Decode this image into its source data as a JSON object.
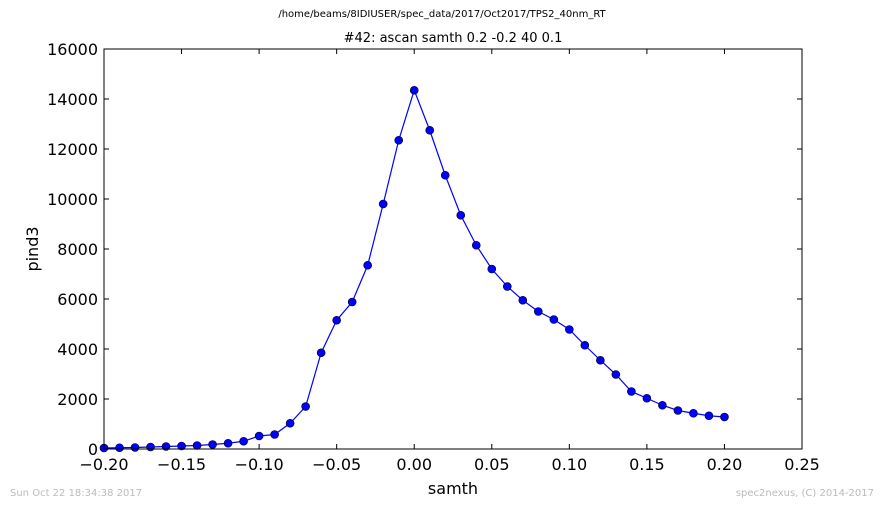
{
  "header": {
    "filepath": "/home/beams/8IDIUSER/spec_data/2017/Oct2017/TPS2_40nm_RT",
    "subtitle": "#42: ascan  samth 0.2 -0.2  40 0.1"
  },
  "footer": {
    "timestamp": "Sun Oct 22 18:34:38 2017",
    "credit": "spec2nexus, (C) 2014-2017"
  },
  "chart_data": {
    "type": "line",
    "title": "#42: ascan  samth 0.2 -0.2  40 0.1",
    "xlabel": "samth",
    "ylabel": "pind3",
    "xlim": [
      -0.2,
      0.25
    ],
    "ylim": [
      0,
      16000
    ],
    "xticks": [
      -0.2,
      -0.15,
      -0.1,
      -0.05,
      0.0,
      0.05,
      0.1,
      0.15,
      0.2,
      0.25
    ],
    "xtick_labels": [
      "−0.20",
      "−0.15",
      "−0.10",
      "−0.05",
      "0.00",
      "0.05",
      "0.10",
      "0.15",
      "0.20",
      "0.25"
    ],
    "yticks": [
      0,
      2000,
      4000,
      6000,
      8000,
      10000,
      12000,
      14000,
      16000
    ],
    "ytick_labels": [
      "0",
      "2000",
      "4000",
      "6000",
      "8000",
      "10000",
      "12000",
      "14000",
      "16000"
    ],
    "grid": false,
    "line_color": "#0000ff",
    "marker_color": "#0000ff",
    "series": [
      {
        "x": [
          -0.2,
          -0.19,
          -0.18,
          -0.17,
          -0.16,
          -0.15,
          -0.14,
          -0.13,
          -0.12,
          -0.11,
          -0.1,
          -0.09,
          -0.08,
          -0.07,
          -0.06,
          -0.05,
          -0.04,
          -0.03,
          -0.02,
          -0.01,
          0.0,
          0.01,
          0.02,
          0.03,
          0.04,
          0.05,
          0.06,
          0.07,
          0.08,
          0.09,
          0.1,
          0.11,
          0.12,
          0.13,
          0.14,
          0.15,
          0.16,
          0.17,
          0.18,
          0.19,
          0.2
        ],
        "y": [
          40,
          50,
          60,
          80,
          100,
          120,
          140,
          180,
          230,
          310,
          520,
          580,
          1030,
          1700,
          3850,
          5150,
          5880,
          7350,
          9800,
          12350,
          14350,
          12750,
          10950,
          9350,
          8150,
          7200,
          6500,
          5950,
          5500,
          5180,
          4780,
          4150,
          3550,
          2980,
          2300,
          2030,
          1750,
          1540,
          1430,
          1330,
          1280
        ]
      }
    ]
  }
}
